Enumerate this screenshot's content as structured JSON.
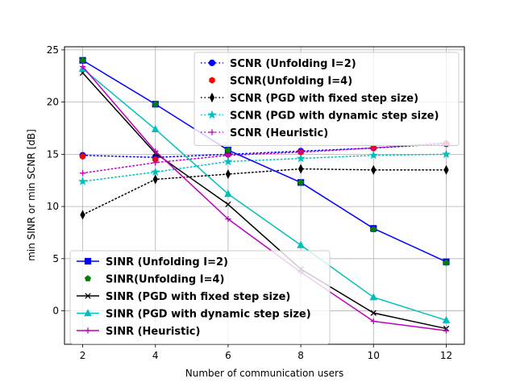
{
  "chart_data": {
    "type": "line",
    "title": "",
    "xlabel": "Number of communication users",
    "ylabel": "min SINR or min SCNR [dB]",
    "x": [
      2,
      4,
      6,
      8,
      10,
      12
    ],
    "xlim": [
      1.5,
      12.5
    ],
    "ylim": [
      -3.2,
      25.3
    ],
    "xticks": [
      2,
      4,
      6,
      8,
      10,
      12
    ],
    "yticks": [
      0,
      5,
      10,
      15,
      20,
      25
    ],
    "grid": true,
    "legend_scnr_position": "upper-right",
    "legend_sinr_position": "lower-left",
    "series": [
      {
        "name": "SCNR (Unfolding I=2)",
        "group": "scnr",
        "color": "#0000ff",
        "linestyle": "dotted",
        "marker": "circle",
        "values": [
          14.9,
          14.7,
          15.0,
          15.3,
          15.6,
          16.0
        ]
      },
      {
        "name": "SCNR(Unfolding I=4)",
        "group": "scnr",
        "color": "#ff0000",
        "linestyle": "none",
        "marker": "hexagon",
        "values": [
          14.8,
          14.5,
          15.0,
          15.2,
          15.6,
          16.0
        ]
      },
      {
        "name": "SCNR (PGD with fixed step size)",
        "group": "scnr",
        "color": "#000000",
        "linestyle": "dotted",
        "marker": "thin_diamond",
        "values": [
          9.2,
          12.6,
          13.1,
          13.6,
          13.5,
          13.5
        ]
      },
      {
        "name": "SCNR (PGD with dynamic step size)",
        "group": "scnr",
        "color": "#00bfbf",
        "linestyle": "dotted",
        "marker": "star",
        "values": [
          12.4,
          13.3,
          14.3,
          14.6,
          14.9,
          15.0
        ]
      },
      {
        "name": "SCNR (Heuristic)",
        "group": "scnr",
        "color": "#bf00bf",
        "linestyle": "dotted",
        "marker": "plus",
        "values": [
          13.2,
          14.2,
          14.9,
          15.2,
          15.6,
          16.1
        ]
      },
      {
        "name": "SINR (Unfolding I=2)",
        "group": "sinr",
        "color": "#0000ff",
        "linestyle": "solid",
        "marker": "square",
        "values": [
          24.0,
          19.8,
          15.4,
          12.3,
          7.9,
          4.7
        ]
      },
      {
        "name": "SINR(Unfolding I=4)",
        "group": "sinr",
        "color": "#008000",
        "linestyle": "none",
        "marker": "pentagon",
        "values": [
          24.0,
          19.8,
          15.4,
          12.3,
          7.8,
          4.6
        ]
      },
      {
        "name": "SINR (PGD with fixed step size)",
        "group": "sinr",
        "color": "#000000",
        "linestyle": "solid",
        "marker": "x",
        "values": [
          22.8,
          15.1,
          10.2,
          4.0,
          -0.2,
          -1.7
        ]
      },
      {
        "name": "SINR (PGD with dynamic step size)",
        "group": "sinr",
        "color": "#00bfbf",
        "linestyle": "solid",
        "marker": "triangle",
        "values": [
          23.2,
          17.4,
          11.2,
          6.3,
          1.3,
          -0.9
        ]
      },
      {
        "name": "SINR (Heuristic)",
        "group": "sinr",
        "color": "#bf00bf",
        "linestyle": "solid",
        "marker": "plus",
        "values": [
          23.4,
          15.3,
          8.8,
          3.7,
          -1.0,
          -1.9
        ]
      }
    ]
  }
}
